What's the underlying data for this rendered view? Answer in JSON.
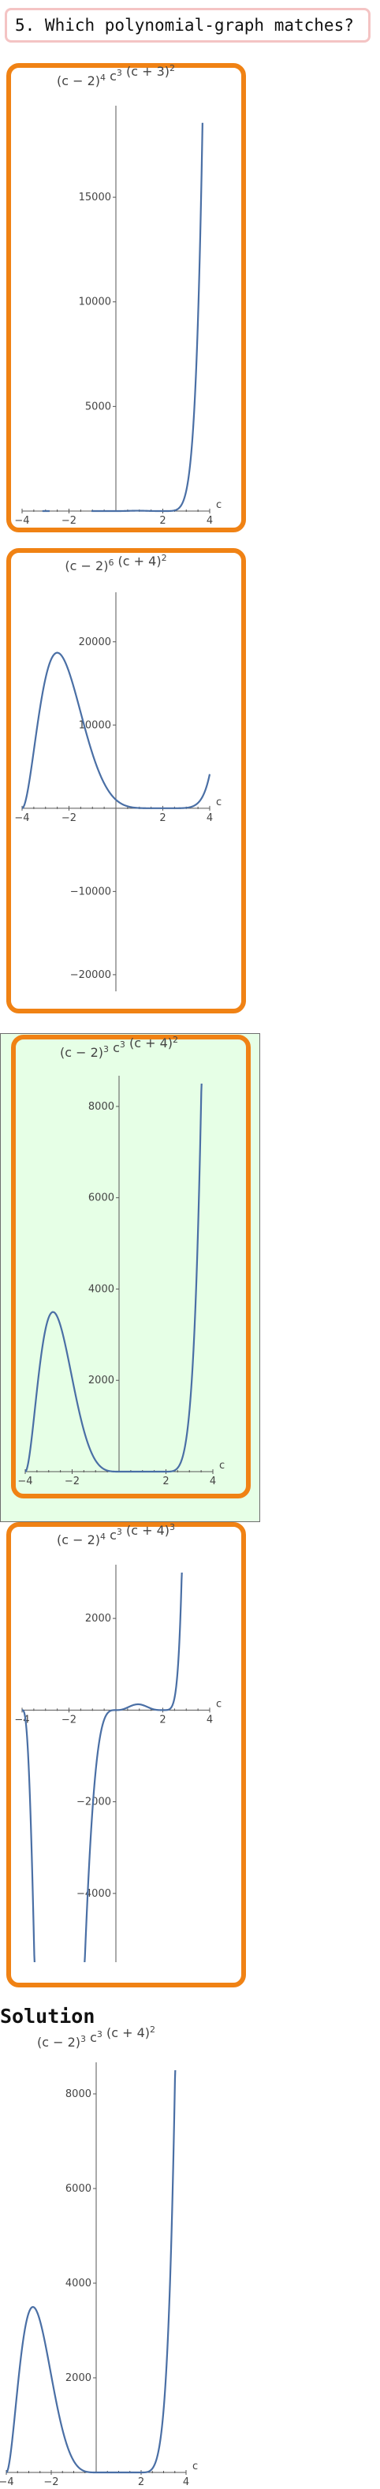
{
  "question": {
    "text": "5. Which polynomial-graph matches?"
  },
  "solution_heading": "Solution",
  "chart_data": [
    {
      "id": "option-1",
      "type": "line",
      "xlim": [
        -4,
        4
      ],
      "ylim": [
        0,
        19000
      ],
      "x_ticks": [
        -4,
        -2,
        2,
        4
      ],
      "y_ticks": [
        5000,
        10000,
        15000
      ],
      "xlabel": "c",
      "ylabel": "",
      "selected": false,
      "title_parts": [
        [
          "(c − 2)",
          "4"
        ],
        [
          " c",
          "3"
        ],
        [
          " (c + 3)",
          "2"
        ]
      ],
      "formula": {
        "factors": [
          [
            2,
            4
          ],
          [
            0,
            3
          ],
          [
            -3,
            2
          ]
        ]
      }
    },
    {
      "id": "option-2",
      "type": "line",
      "xlim": [
        -4,
        4
      ],
      "ylim": [
        -22000,
        25000
      ],
      "x_ticks": [
        -4,
        -2,
        2,
        4
      ],
      "y_ticks": [
        -20000,
        -10000,
        10000,
        20000
      ],
      "xlabel": "c",
      "ylabel": "",
      "selected": false,
      "title_parts": [
        [
          "(c − 2)",
          "6"
        ],
        [
          " (c + 4)",
          "2"
        ]
      ],
      "formula": {
        "factors": [
          [
            2,
            6
          ],
          [
            -4,
            2
          ]
        ]
      }
    },
    {
      "id": "option-3",
      "type": "line",
      "xlim": [
        -4,
        4
      ],
      "ylim": [
        0,
        8500
      ],
      "x_ticks": [
        -4,
        -2,
        2,
        4
      ],
      "y_ticks": [
        2000,
        4000,
        6000,
        8000
      ],
      "xlabel": "c",
      "ylabel": "",
      "selected": true,
      "title_parts": [
        [
          "(c − 2)",
          "3"
        ],
        [
          " c",
          "3"
        ],
        [
          " (c + 4)",
          "2"
        ]
      ],
      "formula": {
        "factors": [
          [
            2,
            3
          ],
          [
            0,
            3
          ],
          [
            -4,
            2
          ]
        ]
      }
    },
    {
      "id": "option-4",
      "type": "line",
      "xlim": [
        -4,
        4
      ],
      "ylim": [
        -5500,
        3000
      ],
      "x_ticks": [
        -4,
        -2,
        2,
        4
      ],
      "y_ticks": [
        -4000,
        -2000,
        2000
      ],
      "xlabel": "c",
      "ylabel": "",
      "selected": false,
      "title_parts": [
        [
          "(c − 2)",
          "4"
        ],
        [
          " c",
          "3"
        ],
        [
          " (c + 4)",
          "3"
        ]
      ],
      "formula": {
        "factors": [
          [
            2,
            4
          ],
          [
            0,
            3
          ],
          [
            -4,
            3
          ]
        ]
      }
    },
    {
      "id": "solution",
      "type": "line",
      "xlim": [
        -4,
        4
      ],
      "ylim": [
        0,
        8500
      ],
      "x_ticks": [
        -4,
        -2,
        2,
        4
      ],
      "y_ticks": [
        2000,
        4000,
        6000,
        8000
      ],
      "xlabel": "c",
      "ylabel": "",
      "selected": false,
      "title_parts": [
        [
          "(c − 2)",
          "3"
        ],
        [
          " c",
          "3"
        ],
        [
          " (c + 4)",
          "2"
        ]
      ],
      "formula": {
        "factors": [
          [
            2,
            3
          ],
          [
            0,
            3
          ],
          [
            -4,
            2
          ]
        ]
      }
    }
  ]
}
